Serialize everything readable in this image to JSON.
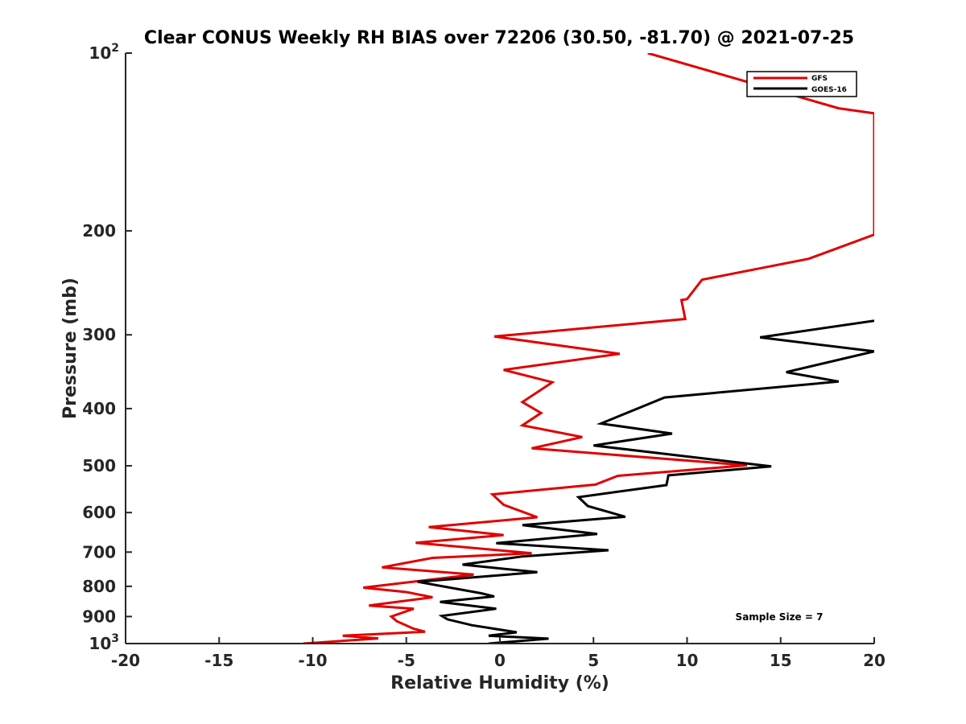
{
  "chart_data": {
    "type": "line",
    "title": "Clear CONUS Weekly RH BIAS over 72206 (30.50, -81.70) @ 2021-07-25",
    "xlabel": "Relative Humidity (%)",
    "ylabel": "Pressure (mb)",
    "xlim": [
      -20,
      20
    ],
    "ylim": [
      100,
      1000
    ],
    "y_scale": "log",
    "y_reversed": true,
    "grid": false,
    "legend_position": "top-right",
    "x_ticks": [
      -20,
      -15,
      -10,
      -5,
      0,
      5,
      10,
      15,
      20
    ],
    "y_ticks": [
      {
        "value": 100,
        "base": "10",
        "exp": "2"
      },
      {
        "value": 200,
        "label": "200"
      },
      {
        "value": 300,
        "label": "300"
      },
      {
        "value": 400,
        "label": "400"
      },
      {
        "value": 500,
        "label": "500"
      },
      {
        "value": 600,
        "label": "600"
      },
      {
        "value": 700,
        "label": "700"
      },
      {
        "value": 800,
        "label": "800"
      },
      {
        "value": 900,
        "label": "900"
      },
      {
        "value": 1000,
        "base": "10",
        "exp": "3"
      }
    ],
    "series": [
      {
        "name": "GFS",
        "color": "#e00000",
        "points": [
          [
            7.9,
            100
          ],
          [
            18.1,
            124
          ],
          [
            20,
            126.5
          ],
          [
            20,
            203
          ],
          [
            16.5,
            223
          ],
          [
            10.8,
            242
          ],
          [
            10.0,
            261
          ],
          [
            9.7,
            262
          ],
          [
            9.9,
            282
          ],
          [
            -0.3,
            302
          ],
          [
            6.4,
            323
          ],
          [
            0.2,
            344
          ],
          [
            2.8,
            361
          ],
          [
            1.2,
            390
          ],
          [
            2.2,
            407
          ],
          [
            1.2,
            427
          ],
          [
            4.4,
            447
          ],
          [
            1.7,
            467
          ],
          [
            13.2,
            499
          ],
          [
            6.3,
            520
          ],
          [
            5.1,
            538
          ],
          [
            -0.4,
            559
          ],
          [
            0.2,
            582
          ],
          [
            2.0,
            611
          ],
          [
            -3.8,
            635
          ],
          [
            0.2,
            655
          ],
          [
            -4.5,
            675
          ],
          [
            1.7,
            703
          ],
          [
            -3.6,
            716
          ],
          [
            -6.3,
            743
          ],
          [
            -1.4,
            764
          ],
          [
            -7.3,
            804
          ],
          [
            -5.0,
            818
          ],
          [
            -3.6,
            835
          ],
          [
            -7.0,
            862
          ],
          [
            -4.6,
            873
          ],
          [
            -5.8,
            900
          ],
          [
            -5.5,
            917
          ],
          [
            -4.6,
            944
          ],
          [
            -4.0,
            955
          ],
          [
            -8.4,
            970
          ],
          [
            -6.5,
            980
          ],
          [
            -10.5,
            1000
          ]
        ]
      },
      {
        "name": "GOES-16",
        "color": "#000000",
        "points": [
          [
            20,
            284
          ],
          [
            13.9,
            303
          ],
          [
            20,
            320
          ],
          [
            15.3,
            347
          ],
          [
            18.1,
            360
          ],
          [
            8.8,
            383
          ],
          [
            5.4,
            424
          ],
          [
            9.2,
            441
          ],
          [
            5.0,
            462
          ],
          [
            14.5,
            501
          ],
          [
            9.0,
            519
          ],
          [
            8.9,
            539
          ],
          [
            4.2,
            565
          ],
          [
            4.7,
            585
          ],
          [
            6.7,
            610
          ],
          [
            1.2,
            630
          ],
          [
            5.2,
            652
          ],
          [
            -0.2,
            676
          ],
          [
            5.8,
            695
          ],
          [
            1.2,
            712
          ],
          [
            -2.0,
            735
          ],
          [
            2.0,
            757
          ],
          [
            -4.4,
            786
          ],
          [
            -1.0,
            822
          ],
          [
            -0.3,
            832
          ],
          [
            -3.2,
            850
          ],
          [
            -0.2,
            873
          ],
          [
            -3.1,
            898
          ],
          [
            -2.8,
            910
          ],
          [
            -1.5,
            931
          ],
          [
            0.9,
            957
          ],
          [
            -0.6,
            970
          ],
          [
            2.6,
            981
          ],
          [
            -0.6,
            1000
          ]
        ]
      }
    ],
    "annotations": [
      {
        "text": "Sample Size = 7"
      }
    ]
  }
}
